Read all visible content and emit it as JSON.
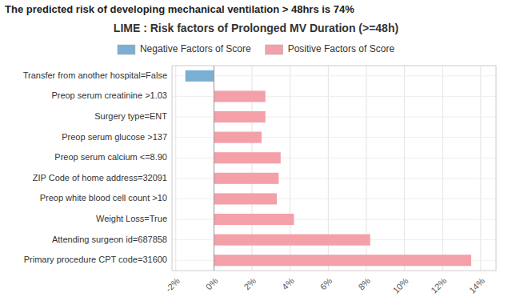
{
  "chart_data": {
    "type": "bar",
    "orientation": "horizontal",
    "title": "LIME : Risk factors of Prolonged MV Duration (>=48h)",
    "subtitle": "The predicted risk of developing mechanical ventilation > 48hrs is 74%",
    "categories": [
      "Transfer from another hospital=False",
      "Preop serum creatinine >1.03",
      "Surgery type=ENT",
      "Preop serum glucose >137",
      "Preop serum calcium <=8.90",
      "ZIP Code of home address=32091",
      "Preop white blood cell count >10",
      "Weight Loss=True",
      "Attending surgeon id=687858",
      "Primary procedure CPT code=31600"
    ],
    "series": [
      {
        "name": "Negative Factors of Score",
        "color": "#7bafd4",
        "values": [
          -0.015,
          null,
          null,
          null,
          null,
          null,
          null,
          null,
          null,
          null
        ]
      },
      {
        "name": "Positive Factors of Score",
        "color": "#f4a0a8",
        "values": [
          null,
          0.027,
          0.027,
          0.025,
          0.035,
          0.034,
          0.033,
          0.042,
          0.082,
          0.135
        ]
      }
    ],
    "xlim": [
      -0.022,
      0.148
    ],
    "xticks": [
      {
        "value": -0.02,
        "label": "-2%"
      },
      {
        "value": 0.0,
        "label": "0%"
      },
      {
        "value": 0.02,
        "label": "2%"
      },
      {
        "value": 0.04,
        "label": "4%"
      },
      {
        "value": 0.06,
        "label": "6%"
      },
      {
        "value": 0.08,
        "label": "8%"
      },
      {
        "value": 0.1,
        "label": "10%"
      },
      {
        "value": 0.12,
        "label": "12%"
      },
      {
        "value": 0.14,
        "label": "14%"
      }
    ],
    "grid": true,
    "legend": "top"
  }
}
